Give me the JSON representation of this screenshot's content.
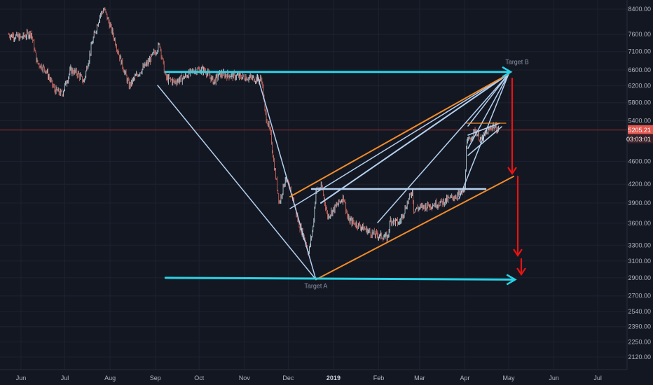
{
  "chart_data": {
    "type": "candlestick",
    "y_scale": "log",
    "ylim": [
      2000,
      9000
    ],
    "y_ticks": [
      "8400.00",
      "7600.00",
      "7100.00",
      "6600.00",
      "6200.00",
      "5800.00",
      "5400.00",
      "4600.00",
      "4200.00",
      "3900.00",
      "3600.00",
      "3300.00",
      "3100.00",
      "2900.00",
      "2700.00",
      "2540.00",
      "2390.00",
      "2250.00",
      "2120.00"
    ],
    "x_ticks": [
      {
        "label": "Jun",
        "date": "2018-06-01"
      },
      {
        "label": "Jul",
        "date": "2018-07-01"
      },
      {
        "label": "Aug",
        "date": "2018-08-01"
      },
      {
        "label": "Sep",
        "date": "2018-09-01"
      },
      {
        "label": "Oct",
        "date": "2018-10-01"
      },
      {
        "label": "Nov",
        "date": "2018-11-01"
      },
      {
        "label": "Dec",
        "date": "2018-12-01"
      },
      {
        "label": "2019",
        "date": "2019-01-01",
        "bold": true
      },
      {
        "label": "Feb",
        "date": "2019-02-01"
      },
      {
        "label": "Mar",
        "date": "2019-03-01"
      },
      {
        "label": "Apr",
        "date": "2019-04-01"
      },
      {
        "label": "May",
        "date": "2019-05-01"
      },
      {
        "label": "Jun",
        "date": "2019-06-01"
      },
      {
        "label": "Jul",
        "date": "2019-07-01"
      }
    ],
    "price_path": [
      [
        "2018-05-23",
        7600
      ],
      [
        "2018-06-01",
        7500
      ],
      [
        "2018-06-08",
        7650
      ],
      [
        "2018-06-12",
        6800
      ],
      [
        "2018-06-18",
        6600
      ],
      [
        "2018-06-24",
        6100
      ],
      [
        "2018-06-29",
        6000
      ],
      [
        "2018-07-05",
        6600
      ],
      [
        "2018-07-10",
        6500
      ],
      [
        "2018-07-14",
        6300
      ],
      [
        "2018-07-20",
        7400
      ],
      [
        "2018-07-25",
        8200
      ],
      [
        "2018-07-28",
        8400
      ],
      [
        "2018-08-03",
        7600
      ],
      [
        "2018-08-08",
        6900
      ],
      [
        "2018-08-14",
        6200
      ],
      [
        "2018-08-20",
        6500
      ],
      [
        "2018-08-27",
        6800
      ],
      [
        "2018-09-04",
        7300
      ],
      [
        "2018-09-08",
        6400
      ],
      [
        "2018-09-14",
        6300
      ],
      [
        "2018-09-20",
        6400
      ],
      [
        "2018-09-28",
        6600
      ],
      [
        "2018-10-05",
        6600
      ],
      [
        "2018-10-11",
        6300
      ],
      [
        "2018-10-15",
        6500
      ],
      [
        "2018-10-25",
        6450
      ],
      [
        "2018-11-05",
        6400
      ],
      [
        "2018-11-13",
        6350
      ],
      [
        "2018-11-15",
        5600
      ],
      [
        "2018-11-19",
        5100
      ],
      [
        "2018-11-21",
        4600
      ],
      [
        "2018-11-25",
        3900
      ],
      [
        "2018-11-29",
        4300
      ],
      [
        "2018-12-04",
        4000
      ],
      [
        "2018-12-08",
        3600
      ],
      [
        "2018-12-12",
        3400
      ],
      [
        "2018-12-15",
        3200
      ],
      [
        "2018-12-18",
        3550
      ],
      [
        "2018-12-20",
        4100
      ],
      [
        "2018-12-24",
        4150
      ],
      [
        "2018-12-28",
        3700
      ],
      [
        "2019-01-01",
        3800
      ],
      [
        "2019-01-08",
        4000
      ],
      [
        "2019-01-11",
        3650
      ],
      [
        "2019-01-20",
        3550
      ],
      [
        "2019-01-28",
        3450
      ],
      [
        "2019-02-07",
        3400
      ],
      [
        "2019-02-09",
        3650
      ],
      [
        "2019-02-15",
        3600
      ],
      [
        "2019-02-24",
        4100
      ],
      [
        "2019-02-25",
        3800
      ],
      [
        "2019-03-05",
        3850
      ],
      [
        "2019-03-15",
        3900
      ],
      [
        "2019-03-25",
        4000
      ],
      [
        "2019-04-01",
        4100
      ],
      [
        "2019-04-02",
        4900
      ],
      [
        "2019-04-08",
        5200
      ],
      [
        "2019-04-12",
        5000
      ],
      [
        "2019-04-20",
        5300
      ],
      [
        "2019-04-24",
        5200
      ]
    ],
    "last_price": {
      "label": "5205.21",
      "countdown": "03:03:01",
      "value": 5205.21
    },
    "drawings": {
      "target_b_label": "Target B",
      "target_a_label": "Target A",
      "resistance_line": {
        "from": [
          "2018-09-08",
          6550
        ],
        "to": [
          "2019-05-01",
          6550
        ]
      },
      "support_line": {
        "from": [
          "2018-09-08",
          2900
        ],
        "to": [
          "2019-05-04",
          2880
        ]
      },
      "apex_a": [
        "2018-12-20",
        2880
      ],
      "apex_b": [
        "2019-05-01",
        6500
      ]
    },
    "colors": {
      "background": "#131722",
      "grid": "#1e2230",
      "candle_up": "#c7dfe9",
      "candle_down": "#e07064",
      "cyan": "#29d3e6",
      "lightblue": "#b4d0ee",
      "orange": "#f08c2a",
      "red": "#e81313",
      "price_line": "#8b2a2a",
      "badge": "#e0564f"
    }
  }
}
